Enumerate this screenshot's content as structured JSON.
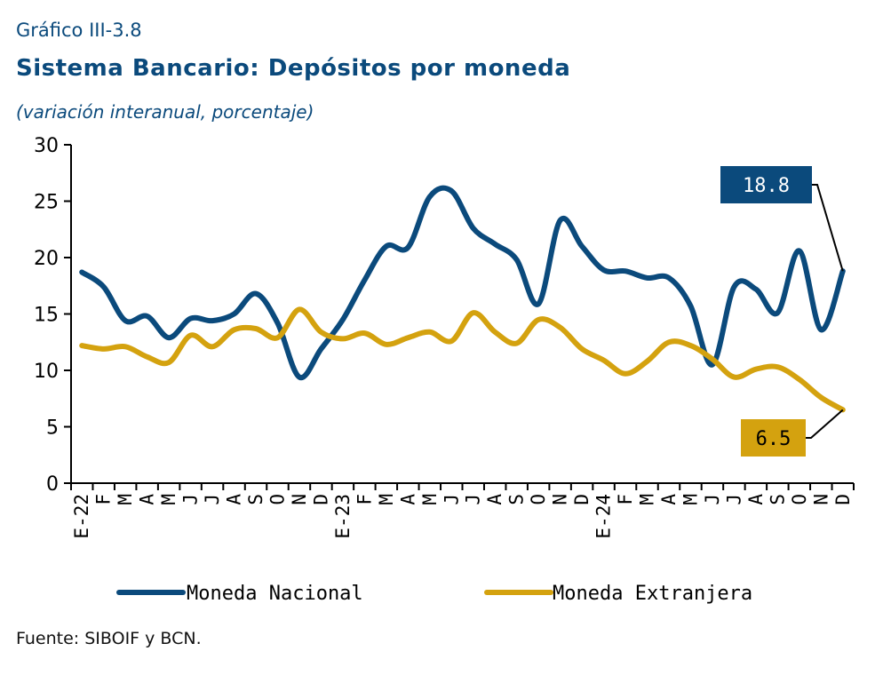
{
  "header": {
    "kicker": "Gráfico III-3.8",
    "title": "Sistema Bancario: Depósitos por moneda",
    "subtitle": "(variación interanual, porcentaje)"
  },
  "footer": {
    "source": "Fuente: SIBOIF y BCN."
  },
  "chart_data": {
    "type": "line",
    "categories": [
      "E-22",
      "F",
      "M",
      "A",
      "M",
      "J",
      "J",
      "A",
      "S",
      "O",
      "N",
      "D",
      "E-23",
      "F",
      "M",
      "A",
      "M",
      "J",
      "J",
      "A",
      "S",
      "O",
      "N",
      "D",
      "E-24",
      "F",
      "M",
      "A",
      "M",
      "J",
      "J",
      "A",
      "S",
      "O",
      "N",
      "D"
    ],
    "ylim": [
      0,
      30
    ],
    "yticks": [
      0,
      5,
      10,
      15,
      20,
      25,
      30
    ],
    "grid": false,
    "legend_position": "bottom",
    "series": [
      {
        "name": "Moneda Nacional",
        "color": "#0b4a7c",
        "values": [
          18.7,
          17.4,
          14.4,
          14.8,
          12.9,
          14.6,
          14.4,
          15.0,
          16.8,
          14.2,
          9.4,
          11.9,
          14.5,
          18.0,
          21.0,
          20.9,
          25.4,
          25.9,
          22.6,
          21.2,
          19.8,
          15.9,
          23.3,
          21.0,
          18.9,
          18.8,
          18.2,
          18.2,
          15.7,
          10.5,
          17.4,
          17.2,
          15.1,
          20.6,
          13.6,
          18.8
        ]
      },
      {
        "name": "Moneda Extranjera",
        "color": "#d4a20f",
        "values": [
          12.2,
          11.9,
          12.1,
          11.2,
          10.7,
          13.1,
          12.1,
          13.6,
          13.7,
          12.9,
          15.4,
          13.4,
          12.8,
          13.3,
          12.3,
          12.9,
          13.4,
          12.6,
          15.1,
          13.4,
          12.4,
          14.5,
          13.8,
          11.9,
          10.9,
          9.7,
          10.8,
          12.5,
          12.2,
          11.0,
          9.4,
          10.1,
          10.3,
          9.2,
          7.6,
          6.5
        ]
      }
    ],
    "annotations": [
      {
        "label": "18.8",
        "series": "Moneda Nacional",
        "value": 18.8,
        "bg": "#0b4a7c",
        "fg": "#ffffff"
      },
      {
        "label": "6.5",
        "series": "Moneda Extranjera",
        "value": 6.5,
        "bg": "#d4a20f",
        "fg": "#000000"
      }
    ]
  }
}
